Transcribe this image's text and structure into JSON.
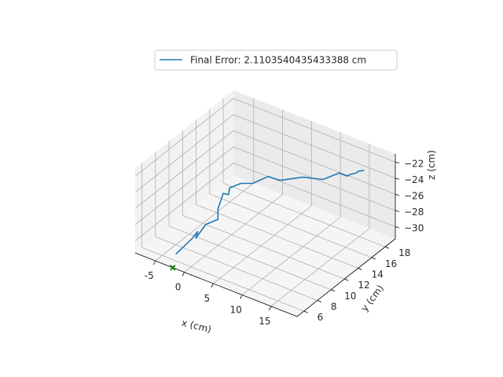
{
  "chart_data": {
    "type": "line3d",
    "title": "",
    "xlabel": "x (cm)",
    "ylabel": "y (cm)",
    "zlabel": "z (cm)",
    "xlim": [
      -8.5,
      19.5
    ],
    "ylim": [
      5.0,
      19.5
    ],
    "zlim": [
      -31.5,
      -21.0
    ],
    "xticks": [
      -5,
      0,
      5,
      10,
      15
    ],
    "yticks": [
      6,
      8,
      10,
      12,
      14,
      16,
      18
    ],
    "zticks": [
      -30,
      -28,
      -26,
      -24,
      -22
    ],
    "grid": true,
    "legend_position": "top-center",
    "series": [
      {
        "name": "Final Error: 2.1103540435433388 cm",
        "color": "#1f77b4",
        "points": [
          [
            -2.8,
            6.2,
            -30.8
          ],
          [
            -2.0,
            7.8,
            -29.8
          ],
          [
            -1.8,
            8.5,
            -29.3
          ],
          [
            -1.4,
            7.9,
            -29.6
          ],
          [
            -1.2,
            9.2,
            -28.7
          ],
          [
            -0.4,
            10.3,
            -28.6
          ],
          [
            -1.1,
            10.9,
            -27.9
          ],
          [
            -1.6,
            12.1,
            -26.9
          ],
          [
            -0.9,
            12.3,
            -27.0
          ],
          [
            -1.3,
            12.8,
            -26.6
          ],
          [
            -0.3,
            13.6,
            -26.3
          ],
          [
            1.2,
            14.1,
            -26.2
          ],
          [
            2.8,
            15.0,
            -25.5
          ],
          [
            4.5,
            15.3,
            -25.7
          ],
          [
            7.5,
            16.1,
            -25.0
          ],
          [
            10.5,
            16.5,
            -24.7
          ],
          [
            12.5,
            17.2,
            -23.8
          ],
          [
            13.6,
            17.4,
            -24.0
          ],
          [
            14.0,
            17.6,
            -23.8
          ],
          [
            14.8,
            17.7,
            -23.5
          ],
          [
            15.2,
            17.8,
            -23.2
          ],
          [
            15.9,
            17.9,
            -23.0
          ]
        ]
      }
    ],
    "target": {
      "label": "",
      "marker": "x",
      "color": "#008000",
      "point": [
        -2.0,
        5.0,
        -31.5
      ]
    }
  }
}
